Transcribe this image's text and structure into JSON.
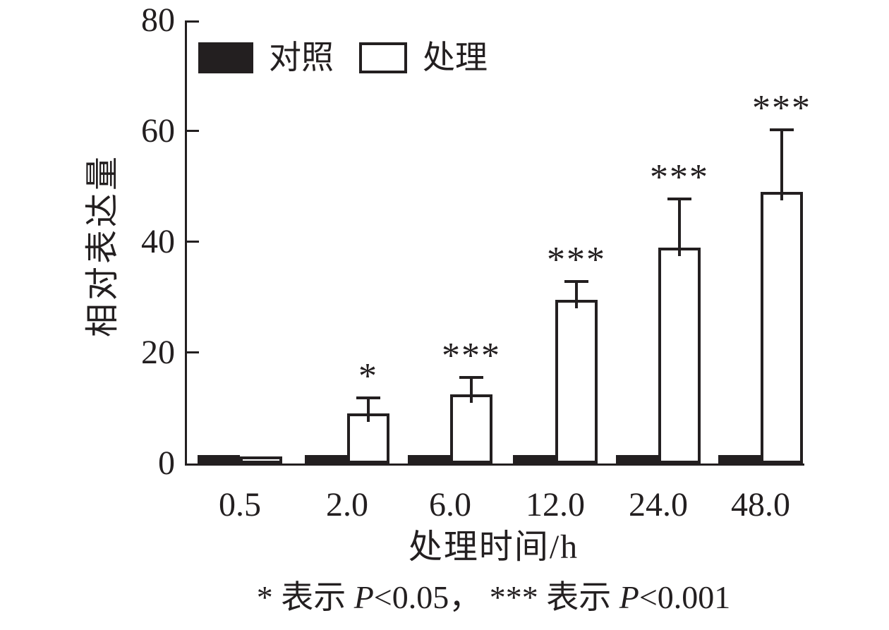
{
  "chart_data": {
    "type": "bar",
    "title": "",
    "xlabel": "处理时间/h",
    "ylabel": "相对表达量",
    "ylim": [
      0,
      80
    ],
    "yticks": [
      0,
      20,
      40,
      60,
      80
    ],
    "grid": false,
    "legend_position": "top-left",
    "categories": [
      "0.5",
      "2.0",
      "6.0",
      "12.0",
      "24.0",
      "48.0"
    ],
    "series": [
      {
        "name": "对照",
        "style": "filled-black",
        "values": [
          1.5,
          1.5,
          1.5,
          1.5,
          1.5,
          1.5
        ],
        "error_upper": [
          0,
          0,
          0,
          0,
          0,
          0
        ]
      },
      {
        "name": "处理",
        "style": "open-white",
        "values": [
          1,
          9,
          12.5,
          29.5,
          39,
          49
        ],
        "error_upper": [
          0,
          2.5,
          2.8,
          3,
          8.5,
          11
        ],
        "significance": [
          "",
          "*",
          "***",
          "***",
          "***",
          "***"
        ]
      }
    ],
    "footnote": "* 表示 P<0.05， *** 表示 P<0.001",
    "footnote_parts": [
      {
        "text": "* 表示 ",
        "italic": false
      },
      {
        "text": "P",
        "italic": true
      },
      {
        "text": "<0.05， *** 表示 ",
        "italic": false
      },
      {
        "text": "P",
        "italic": true
      },
      {
        "text": "<0.001",
        "italic": false
      }
    ]
  },
  "colors": {
    "ink": "#231f20",
    "paper": "#ffffff",
    "control_fill": "#231f20",
    "treatment_fill": "#ffffff"
  }
}
